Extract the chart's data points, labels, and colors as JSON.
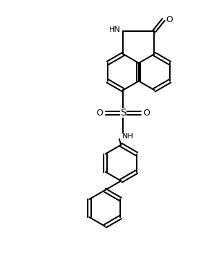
{
  "bg_color": "#ffffff",
  "line_color": "#000000",
  "line_width": 1.5,
  "fig_width": 3.2,
  "fig_height": 3.86,
  "dpi": 100,
  "xlim": [
    -1,
    9
  ],
  "ylim": [
    0,
    12
  ]
}
